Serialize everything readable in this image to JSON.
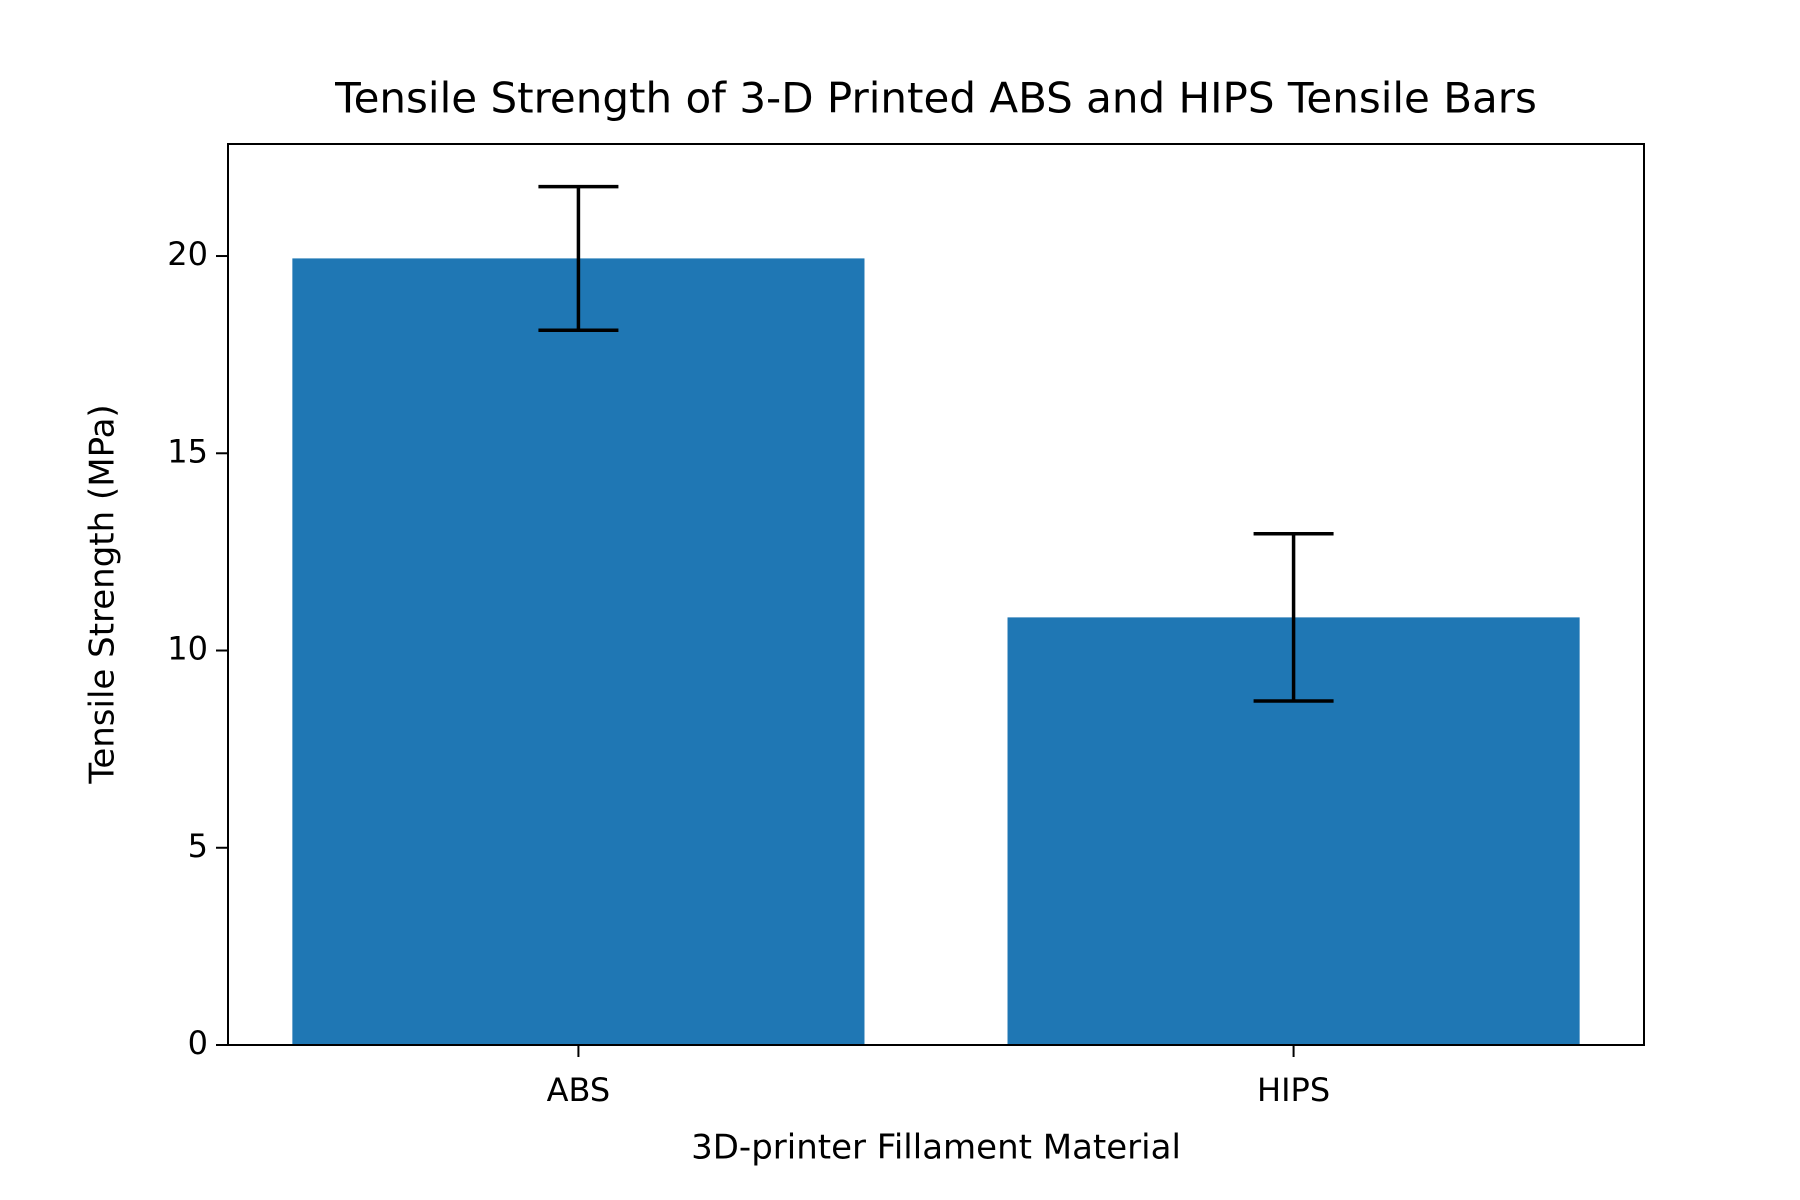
{
  "chart_data": {
    "type": "bar",
    "title": "Tensile Strength of 3-D Printed ABS and HIPS Tensile Bars",
    "x_label": "3D-printer Fillament Material",
    "y_label": "Tensile Strength (MPa)",
    "categories": [
      "ABS",
      "HIPS"
    ],
    "values": [
      19.94,
      10.84
    ],
    "errors": [
      1.82,
      2.12
    ],
    "color": "#1f77b4",
    "ylim": [
      0,
      22.84
    ],
    "yticks": [
      0,
      5,
      10,
      15,
      20
    ]
  }
}
